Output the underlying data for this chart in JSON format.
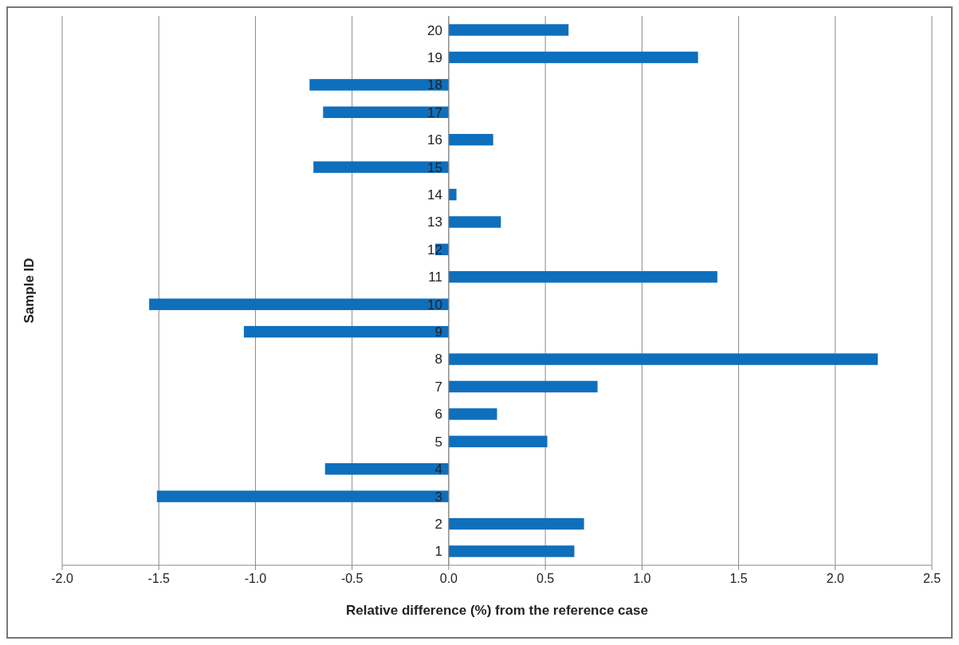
{
  "chart_data": {
    "type": "bar",
    "orientation": "horizontal",
    "xlabel": "Relative difference (%) from the reference case",
    "ylabel": "Sample ID",
    "categories": [
      "20",
      "19",
      "18",
      "17",
      "16",
      "15",
      "14",
      "13",
      "12",
      "11",
      "10",
      "9",
      "8",
      "7",
      "6",
      "5",
      "4",
      "3",
      "2",
      "1"
    ],
    "values": [
      0.62,
      1.29,
      -0.72,
      -0.65,
      0.23,
      -0.7,
      0.04,
      0.27,
      -0.07,
      1.39,
      -1.55,
      -1.06,
      2.22,
      0.77,
      0.25,
      0.51,
      -0.64,
      -1.51,
      0.7,
      0.65
    ],
    "color": "#0e6fbd",
    "xlim": [
      -2,
      2.5
    ],
    "xticks": [
      {
        "value": -2,
        "label": "-2.0"
      },
      {
        "value": -1.5,
        "label": "-1.5"
      },
      {
        "value": -1,
        "label": "-1.0"
      },
      {
        "value": -0.5,
        "label": "-0.5"
      },
      {
        "value": 0,
        "label": "0.0"
      },
      {
        "value": 0.5,
        "label": "0.5"
      },
      {
        "value": 1,
        "label": "1.0"
      },
      {
        "value": 1.5,
        "label": "1.5"
      },
      {
        "value": 2,
        "label": "2.0"
      },
      {
        "value": 2.5,
        "label": "2.5"
      }
    ],
    "grid": "x"
  }
}
